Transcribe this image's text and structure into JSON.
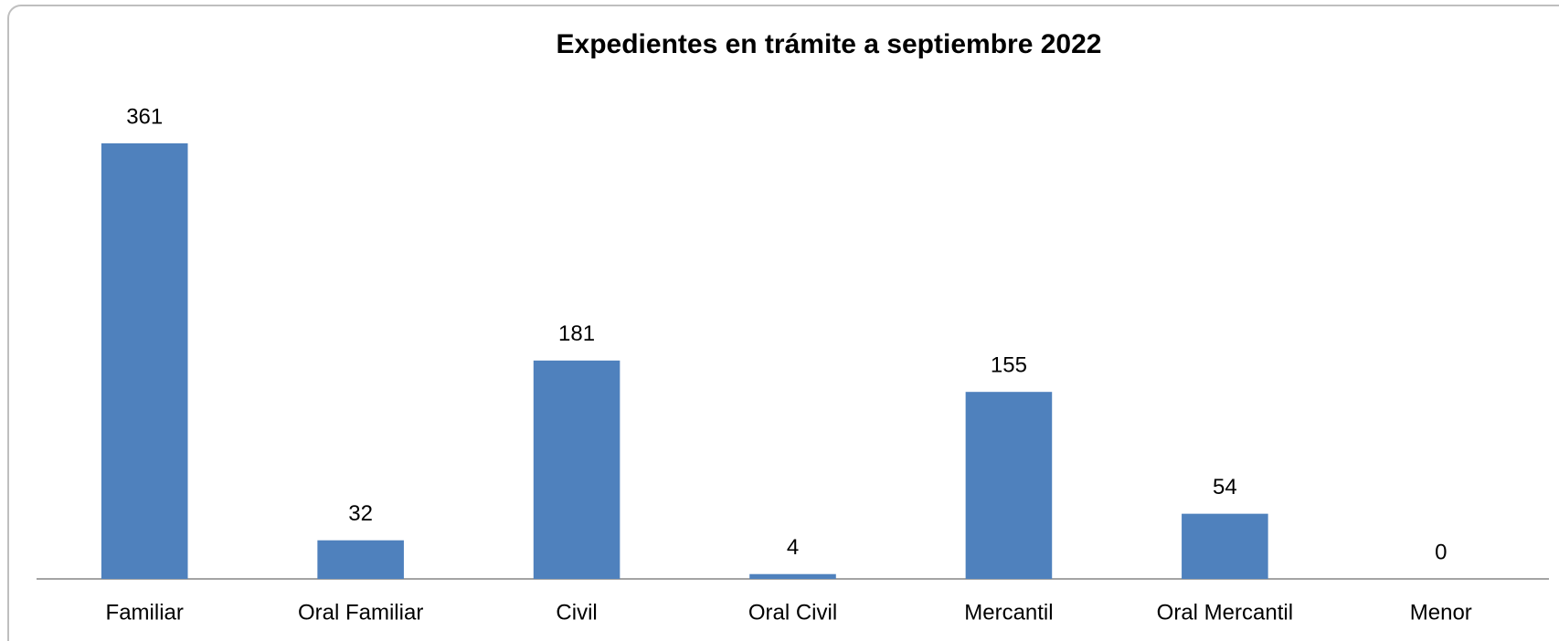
{
  "chart_data": {
    "type": "bar",
    "title": "Expedientes en trámite a septiembre 2022",
    "categories": [
      "Familiar",
      "Oral Familiar",
      "Civil",
      "Oral Civil",
      "Mercantil",
      "Oral Mercantil",
      "Menor"
    ],
    "values": [
      361,
      32,
      181,
      4,
      155,
      54,
      0
    ],
    "color": "#4f81bd"
  }
}
